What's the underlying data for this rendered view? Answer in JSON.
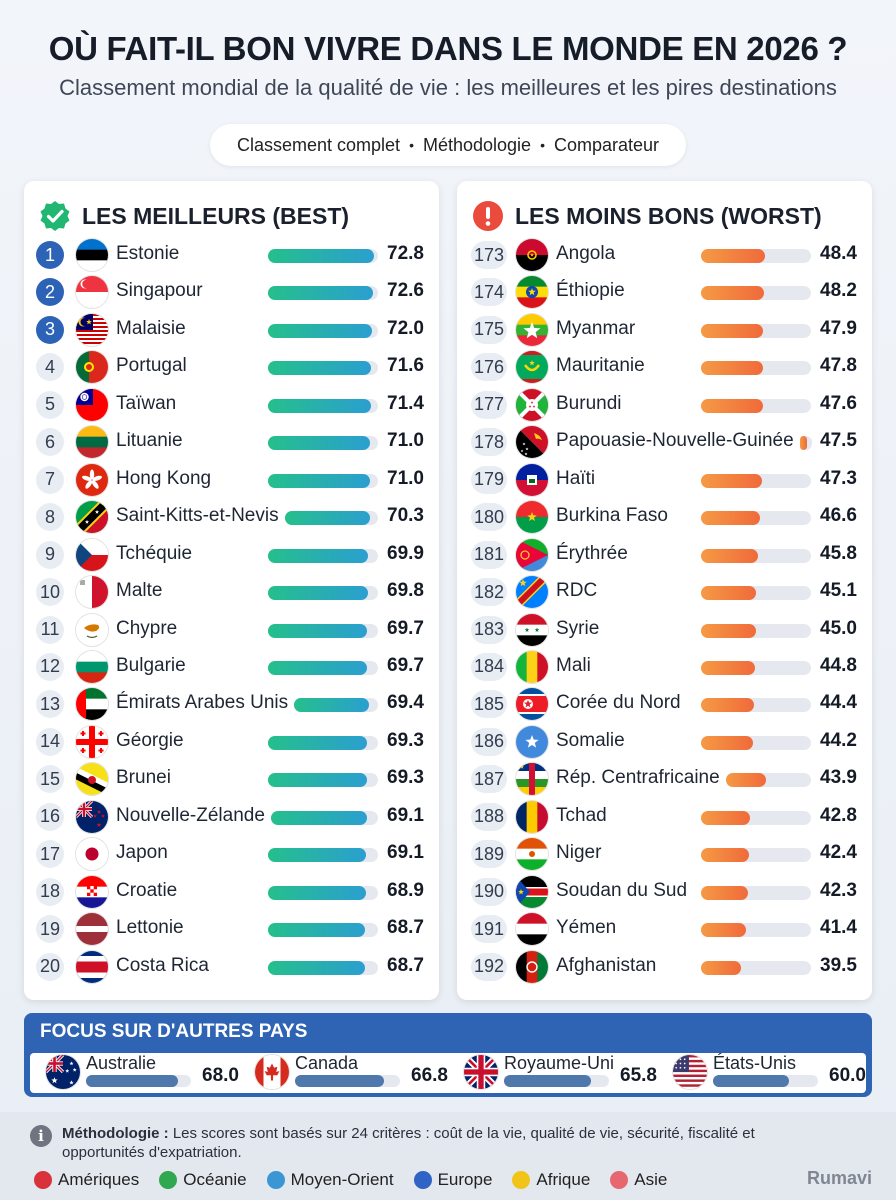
{
  "header": {
    "title": "OÙ FAIT-IL BON VIVRE DANS LE MONDE EN 2026 ?",
    "subtitle": "Classement mondial de la qualité de vie : les meilleures et les pires destinations"
  },
  "nav": {
    "items": [
      "Classement complet",
      "Méthodologie",
      "Comparateur"
    ],
    "separator": "•"
  },
  "best": {
    "heading": "LES MEILLEURS (BEST)",
    "icon": "check-badge-icon",
    "accent": "#25bf8c"
  },
  "worst": {
    "heading": "LES MOINS BONS (WORST)",
    "icon": "exclamation-icon",
    "accent": "#f06a3a"
  },
  "focus": {
    "heading": "FOCUS SUR D'AUTRES PAYS"
  },
  "footer": {
    "method_label": "Méthodologie :",
    "method_text": "Les scores sont basés sur 24 critères : coût de la vie, qualité de vie, sécurité, fiscalité et opportunités d'expatriation.",
    "legend": [
      {
        "label": "Amériques",
        "color": "#d9323a"
      },
      {
        "label": "Océanie",
        "color": "#2fa84f"
      },
      {
        "label": "Moyen-Orient",
        "color": "#3a97d4"
      },
      {
        "label": "Europe",
        "color": "#2f63c4"
      },
      {
        "label": "Afrique",
        "color": "#f0c419"
      },
      {
        "label": "Asie",
        "color": "#e66770"
      }
    ],
    "brand": "Rumavi"
  },
  "chart_data": [
    {
      "type": "bar",
      "title": "LES MEILLEURS (BEST)",
      "ranks": [
        1,
        2,
        3,
        4,
        5,
        6,
        7,
        8,
        9,
        10,
        11,
        12,
        13,
        14,
        15,
        16,
        17,
        18,
        19,
        20
      ],
      "categories": [
        "Estonie",
        "Singapour",
        "Malaisie",
        "Portugal",
        "Taïwan",
        "Lituanie",
        "Hong Kong",
        "Saint-Kitts-et-Nevis",
        "Tchéquie",
        "Malte",
        "Chypre",
        "Bulgarie",
        "Émirats Arabes Unis",
        "Géorgie",
        "Brunei",
        "Nouvelle-Zélande",
        "Japon",
        "Croatie",
        "Lettonie",
        "Costa Rica"
      ],
      "values": [
        72.8,
        72.6,
        72.0,
        71.6,
        71.4,
        71.0,
        71.0,
        70.3,
        69.9,
        69.8,
        69.7,
        69.7,
        69.4,
        69.3,
        69.3,
        69.1,
        69.1,
        68.9,
        68.7,
        68.7
      ],
      "flags": [
        "ee",
        "sg",
        "my",
        "pt",
        "tw",
        "lt",
        "hk",
        "kn",
        "cz",
        "mt",
        "cy",
        "bg",
        "ae",
        "ge",
        "bn",
        "nz",
        "jp",
        "hr",
        "lv",
        "cr"
      ]
    },
    {
      "type": "bar",
      "title": "LES MOINS BONS (WORST)",
      "ranks": [
        173,
        174,
        175,
        176,
        177,
        178,
        179,
        180,
        181,
        182,
        183,
        184,
        185,
        186,
        187,
        188,
        189,
        190,
        191,
        192
      ],
      "categories": [
        "Angola",
        "Éthiopie",
        "Myanmar",
        "Mauritanie",
        "Burundi",
        "Papouasie-Nouvelle-Guinée",
        "Haïti",
        "Burkina Faso",
        "Érythrée",
        "RDC",
        "Syrie",
        "Mali",
        "Corée du Nord",
        "Somalie",
        "Rép. Centrafricaine",
        "Tchad",
        "Niger",
        "Soudan du Sud",
        "Yémen",
        "Afghanistan"
      ],
      "values": [
        48.4,
        48.2,
        47.9,
        47.8,
        47.6,
        47.5,
        47.3,
        46.6,
        45.8,
        45.1,
        45.0,
        44.8,
        44.4,
        44.2,
        43.9,
        42.8,
        42.4,
        42.3,
        41.4,
        39.5
      ],
      "flags": [
        "ao",
        "et",
        "mm",
        "mr",
        "bi",
        "pg",
        "ht",
        "bf",
        "er",
        "cd",
        "sy",
        "ml",
        "kp",
        "so",
        "cf",
        "td",
        "ne",
        "ss",
        "ye",
        "af"
      ]
    },
    {
      "type": "bar",
      "title": "FOCUS SUR D'AUTRES PAYS",
      "categories": [
        "Australie",
        "Canada",
        "Royaume-Uni",
        "États-Unis"
      ],
      "values": [
        68.0,
        66.8,
        65.8,
        60.0
      ],
      "flags": [
        "au",
        "ca",
        "gb",
        "us"
      ]
    }
  ]
}
